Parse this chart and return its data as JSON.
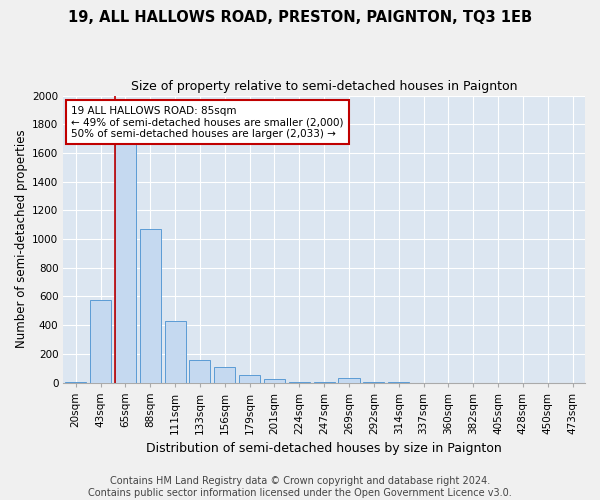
{
  "title": "19, ALL HALLOWS ROAD, PRESTON, PAIGNTON, TQ3 1EB",
  "subtitle": "Size of property relative to semi-detached houses in Paignton",
  "xlabel": "Distribution of semi-detached houses by size in Paignton",
  "ylabel": "Number of semi-detached properties",
  "footer": "Contains HM Land Registry data © Crown copyright and database right 2024.\nContains public sector information licensed under the Open Government Licence v3.0.",
  "categories": [
    "20sqm",
    "43sqm",
    "65sqm",
    "88sqm",
    "111sqm",
    "133sqm",
    "156sqm",
    "179sqm",
    "201sqm",
    "224sqm",
    "247sqm",
    "269sqm",
    "292sqm",
    "314sqm",
    "337sqm",
    "360sqm",
    "382sqm",
    "405sqm",
    "428sqm",
    "450sqm",
    "473sqm"
  ],
  "bar_values": [
    5,
    575,
    1680,
    1070,
    430,
    155,
    110,
    50,
    25,
    5,
    3,
    28,
    2,
    1,
    0,
    0,
    0,
    0,
    0,
    0,
    0
  ],
  "bar_color": "#c5d9f0",
  "bar_edge_color": "#5b9bd5",
  "line_color": "#c00000",
  "line_bar_index": 2,
  "annotation_text": "19 ALL HALLOWS ROAD: 85sqm\n← 49% of semi-detached houses are smaller (2,000)\n50% of semi-detached houses are larger (2,033) →",
  "annotation_box_color": "#ffffff",
  "annotation_box_edge_color": "#c00000",
  "ylim": [
    0,
    2000
  ],
  "yticks": [
    0,
    200,
    400,
    600,
    800,
    1000,
    1200,
    1400,
    1600,
    1800,
    2000
  ],
  "background_color": "#dce6f1",
  "grid_color": "#ffffff",
  "title_fontsize": 10.5,
  "subtitle_fontsize": 9,
  "ylabel_fontsize": 8.5,
  "xlabel_fontsize": 9,
  "tick_fontsize": 7.5,
  "annotation_fontsize": 7.5,
  "footer_fontsize": 7
}
